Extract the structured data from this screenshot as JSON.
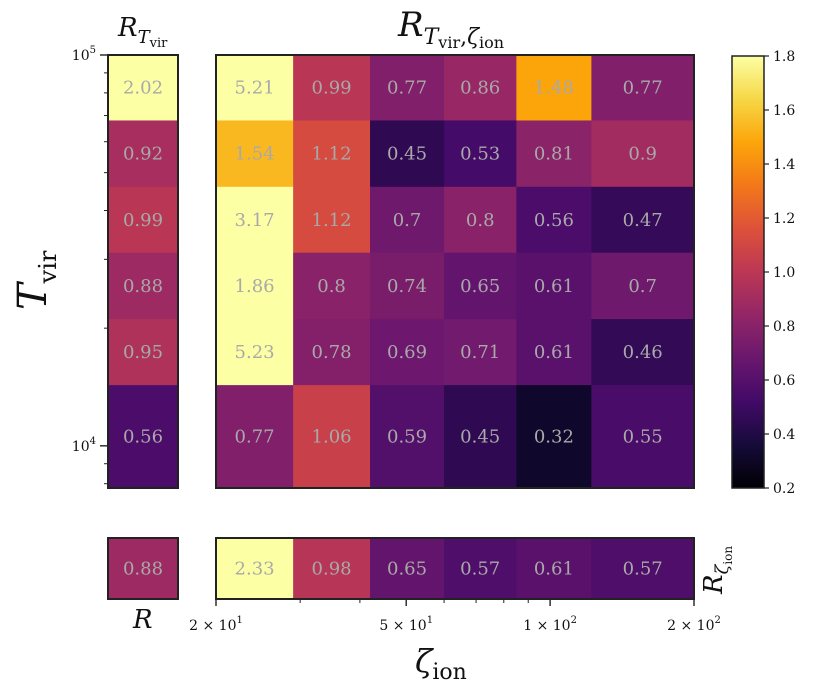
{
  "chart_data": {
    "type": "heatmap",
    "title_main": {
      "sym": "R",
      "sub": "T",
      "subsub": "vir",
      "sep": ",",
      "zeta": "ζ",
      "zsub": "ion"
    },
    "title_left": {
      "sym": "R",
      "sub": "T",
      "subsub": "vir"
    },
    "label_bottom_left": "R",
    "label_right_bottom": {
      "sym": "R",
      "sub": "ζ",
      "subsub": "ion"
    },
    "ylabel": {
      "sym": "T",
      "sub": "vir"
    },
    "xlabel": {
      "sym": "ζ",
      "sub": "ion"
    },
    "x_scale": "log",
    "y_scale": "log",
    "xlim": [
      20,
      200
    ],
    "ylim": [
      7800,
      100000
    ],
    "x_ticks": [
      {
        "value": 20,
        "mant": "2",
        "exp": "1"
      },
      {
        "value": 50,
        "mant": "5",
        "exp": "1"
      },
      {
        "value": 100,
        "mant": "1",
        "exp": "2"
      },
      {
        "value": 200,
        "mant": "2",
        "exp": "2"
      }
    ],
    "y_ticks": [
      {
        "value": 100000,
        "base": "10",
        "exp": "5"
      },
      {
        "value": 10000,
        "base": "10",
        "exp": "4"
      }
    ],
    "x_edges": [
      20,
      29,
      42,
      60,
      85,
      122,
      200
    ],
    "y_edges": [
      100000,
      68000,
      46000,
      31200,
      21100,
      14300,
      7800
    ],
    "main_grid": [
      [
        5.21,
        0.99,
        0.77,
        0.86,
        1.48,
        0.77
      ],
      [
        1.54,
        1.12,
        0.45,
        0.53,
        0.81,
        0.9
      ],
      [
        3.17,
        1.12,
        0.7,
        0.8,
        0.56,
        0.47
      ],
      [
        1.86,
        0.8,
        0.74,
        0.65,
        0.61,
        0.7
      ],
      [
        5.23,
        0.78,
        0.69,
        0.71,
        0.61,
        0.46
      ],
      [
        0.77,
        1.06,
        0.59,
        0.45,
        0.32,
        0.55
      ]
    ],
    "row_marginal": [
      2.02,
      0.92,
      0.99,
      0.88,
      0.95,
      0.56
    ],
    "col_marginal": [
      2.33,
      0.98,
      0.65,
      0.57,
      0.61,
      0.57
    ],
    "overall": 0.88,
    "colorbar": {
      "min": 0.2,
      "max": 1.8,
      "colormap": "inferno",
      "ticks": [
        0.2,
        0.4,
        0.6,
        0.8,
        1.0,
        1.2,
        1.4,
        1.6,
        1.8
      ],
      "tick_labels": [
        "0.2",
        "0.4",
        "0.6",
        "0.8",
        "1.0",
        "1.2",
        "1.4",
        "1.6",
        "1.8"
      ]
    },
    "cell_text_color": "#a9a9a9"
  }
}
